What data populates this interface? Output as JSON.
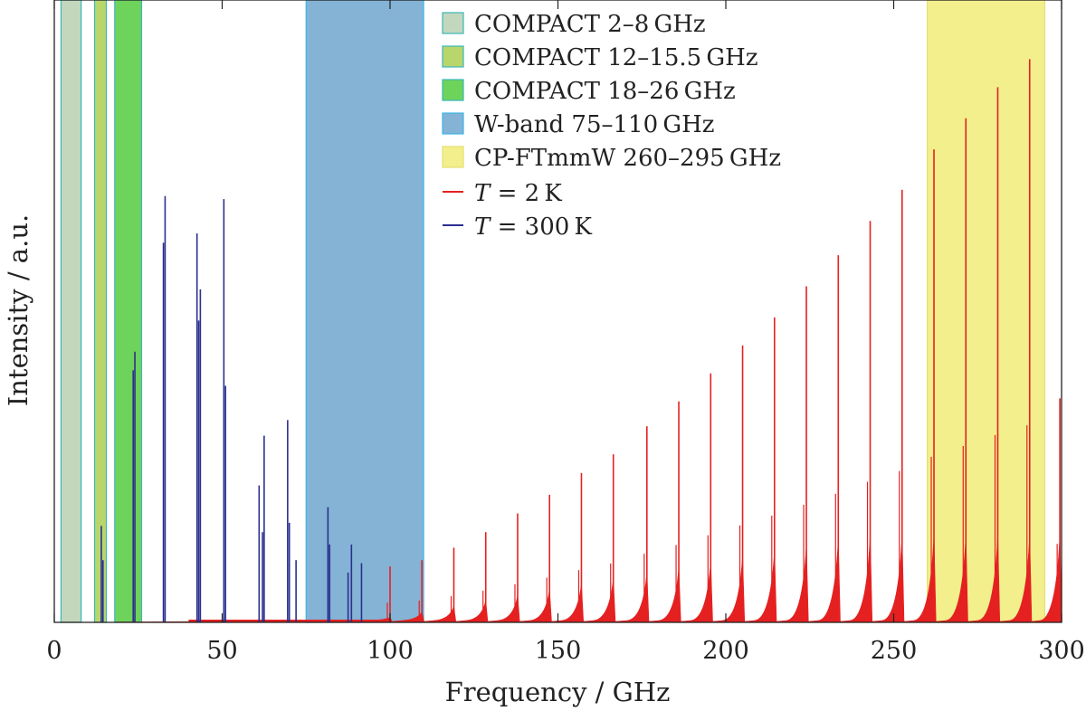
{
  "chart_data": {
    "type": "line",
    "xlabel": "Frequency / GHz",
    "ylabel": "Intensity / a.u.",
    "xlim": [
      0,
      300
    ],
    "ylim": [
      0,
      100
    ],
    "xticks": [
      0,
      50,
      100,
      150,
      200,
      250,
      300
    ],
    "xtick_labels": [
      "0",
      "50",
      "100",
      "150",
      "200",
      "250",
      "300"
    ],
    "bands": [
      {
        "name": "COMPACT 2–8 GHz",
        "range": [
          2,
          8
        ],
        "color": "#c3d7bd",
        "edge": "#3ab8b8"
      },
      {
        "name": "COMPACT 12–15.5 GHz",
        "range": [
          12,
          15.5
        ],
        "color": "#b8d66b",
        "edge": "#3ab8b8"
      },
      {
        "name": "COMPACT 18–26 GHz",
        "range": [
          18,
          26
        ],
        "color": "#6ed35a",
        "edge": "#3ab8b8"
      },
      {
        "name": "W-band 75–110 GHz",
        "range": [
          75,
          110
        ],
        "color": "#84b3d6",
        "edge": "#3fb6e6"
      },
      {
        "name": "CP-FTmmW 260–295 GHz",
        "range": [
          260,
          295
        ],
        "color": "#f2ef8c",
        "edge": "#e6e070"
      }
    ],
    "series": [
      {
        "name": "T = 2 K",
        "label_var": "T",
        "label_value": "2 K",
        "color": "#e52020",
        "x": [
          100,
          109.5,
          119,
          128.5,
          138,
          147.5,
          157,
          166.5,
          176.5,
          186,
          195.5,
          205,
          214.5,
          224,
          233.5,
          243,
          252.5,
          262,
          271.5,
          281,
          290.5,
          299.5
        ],
        "y": [
          9,
          10,
          12,
          14.5,
          17.5,
          20.5,
          24,
          27,
          31.5,
          35.5,
          40,
          44.5,
          49,
          54,
          59,
          64.5,
          69.5,
          76,
          81,
          86,
          90.5,
          36
        ]
      },
      {
        "name": "T = 300 K",
        "label_var": "T",
        "label_value": "300 K",
        "color": "#2b2f8f",
        "x": [
          14,
          14.5,
          23.5,
          24,
          32.5,
          33,
          42.5,
          43,
          43.5,
          50.5,
          51,
          61,
          62,
          62.5,
          69.5,
          70,
          72,
          81.5,
          82,
          87.5,
          88.5,
          91.5
        ],
        "y": [
          15.5,
          10,
          40.5,
          43.5,
          61,
          68.5,
          62.5,
          48.5,
          53.5,
          68,
          38,
          22,
          14.5,
          30,
          32.5,
          16,
          10,
          18.5,
          12.5,
          8,
          12.5,
          9.5
        ]
      }
    ]
  }
}
